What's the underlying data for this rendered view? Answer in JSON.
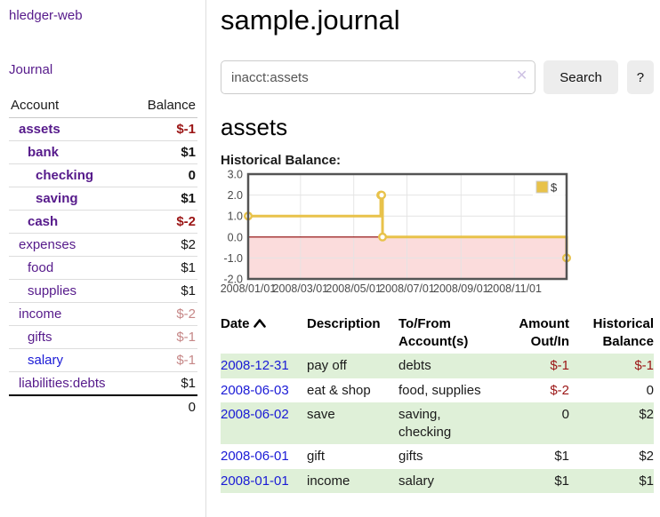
{
  "sidebar": {
    "brand": "hledger-web",
    "nav_journal": "Journal",
    "accounts_table": {
      "account_header": "Account",
      "balance_header": "Balance",
      "rows": [
        {
          "label": "assets",
          "indent": 1,
          "bold": true,
          "link": "purple",
          "balance": "$-1",
          "balance_class": "amt-neg"
        },
        {
          "label": "bank",
          "indent": 2,
          "bold": true,
          "link": "purple",
          "balance": "$1",
          "balance_class": "amt-pos"
        },
        {
          "label": "checking",
          "indent": 3,
          "bold": true,
          "link": "purple",
          "balance": "0",
          "balance_class": "amt-pos"
        },
        {
          "label": "saving",
          "indent": 3,
          "bold": true,
          "link": "purple",
          "balance": "$1",
          "balance_class": "amt-pos"
        },
        {
          "label": "cash",
          "indent": 2,
          "bold": true,
          "link": "purple",
          "balance": "$-2",
          "balance_class": "amt-neg"
        },
        {
          "label": "expenses",
          "indent": 1,
          "bold": false,
          "link": "purple",
          "balance": "$2",
          "balance_class": "amt-pos"
        },
        {
          "label": "food",
          "indent": 2,
          "bold": false,
          "link": "purple",
          "balance": "$1",
          "balance_class": "amt-pos"
        },
        {
          "label": "supplies",
          "indent": 2,
          "bold": false,
          "link": "purple",
          "balance": "$1",
          "balance_class": "amt-pos"
        },
        {
          "label": "income",
          "indent": 1,
          "bold": false,
          "link": "purple",
          "balance": "$-2",
          "balance_class": "amt-neg-soft"
        },
        {
          "label": "gifts",
          "indent": 2,
          "bold": false,
          "link": "purple",
          "balance": "$-1",
          "balance_class": "amt-neg-soft"
        },
        {
          "label": "salary",
          "indent": 2,
          "bold": false,
          "link": "blue",
          "balance": "$-1",
          "balance_class": "amt-neg-soft"
        },
        {
          "label": "liabilities:debts",
          "indent": 1,
          "bold": false,
          "link": "purple",
          "balance": "$1",
          "balance_class": "amt-pos"
        }
      ],
      "total": "0"
    }
  },
  "header": {
    "title": "sample.journal"
  },
  "search": {
    "value": "inacct:assets",
    "clear_icon": "✕",
    "search_label": "Search",
    "help_label": "?"
  },
  "account_page": {
    "heading": "assets",
    "chart_label": "Historical Balance:"
  },
  "chart_data": {
    "type": "line",
    "title": "Historical Balance",
    "step": true,
    "xlim": [
      "2008-01-01",
      "2008-12-31"
    ],
    "ylim": [
      -2,
      3
    ],
    "x_ticks": [
      "2008/01/01",
      "2008/03/01",
      "2008/05/01",
      "2008/07/01",
      "2008/09/01",
      "2008/11/01"
    ],
    "y_ticks": [
      3.0,
      2.0,
      1.0,
      0.0,
      -1.0,
      -2.0
    ],
    "y_tick_labels": [
      "3.0",
      "2.0",
      "1.0",
      "0.0",
      "-1.0",
      "-2.0"
    ],
    "grid": true,
    "legend_position": "top-right",
    "series": [
      {
        "name": "$",
        "color": "#E8C24A",
        "marker_fill": "#FFFFFF",
        "points": [
          {
            "date": "2008-01-01",
            "value": 1
          },
          {
            "date": "2008-06-01",
            "value": 2
          },
          {
            "date": "2008-06-02",
            "value": 2
          },
          {
            "date": "2008-06-03",
            "value": 0
          },
          {
            "date": "2008-12-31",
            "value": -1
          }
        ]
      }
    ],
    "negative_region_fill": "#FBDCDC",
    "zero_line_color": "#8B0000",
    "grid_color": "#E4E4E4",
    "border_color": "#545454"
  },
  "register": {
    "columns": [
      {
        "label": "Date",
        "sorted": "asc",
        "align": "left"
      },
      {
        "label": "Description",
        "align": "left"
      },
      {
        "label": "To/From Account(s)",
        "align": "left"
      },
      {
        "label": "Amount Out/In",
        "align": "right"
      },
      {
        "label": "Historical Balance",
        "align": "right"
      }
    ],
    "rows": [
      {
        "date": "2008-12-31",
        "description": "pay off",
        "accounts": "debts",
        "amount": "$-1",
        "amount_neg": true,
        "balance": "$-1",
        "balance_neg": true,
        "shaded": true
      },
      {
        "date": "2008-06-03",
        "description": "eat & shop",
        "accounts": "food, supplies",
        "amount": "$-2",
        "amount_neg": true,
        "balance": "0",
        "balance_neg": false,
        "shaded": false
      },
      {
        "date": "2008-06-02",
        "description": "save",
        "accounts": "saving, checking",
        "amount": "0",
        "amount_neg": false,
        "balance": "$2",
        "balance_neg": false,
        "shaded": true
      },
      {
        "date": "2008-06-01",
        "description": "gift",
        "accounts": "gifts",
        "amount": "$1",
        "amount_neg": false,
        "balance": "$2",
        "balance_neg": false,
        "shaded": false
      },
      {
        "date": "2008-01-01",
        "description": "income",
        "accounts": "salary",
        "amount": "$1",
        "amount_neg": false,
        "balance": "$1",
        "balance_neg": false,
        "shaded": true
      }
    ]
  },
  "colors": {
    "purple_link": "#561A8B",
    "blue_link": "#1A1AD6",
    "negative_strong": "#9B1515",
    "negative_soft": "#C68787",
    "row_stripe_green": "#DFF0D8",
    "button_bg": "#EDEDED"
  }
}
